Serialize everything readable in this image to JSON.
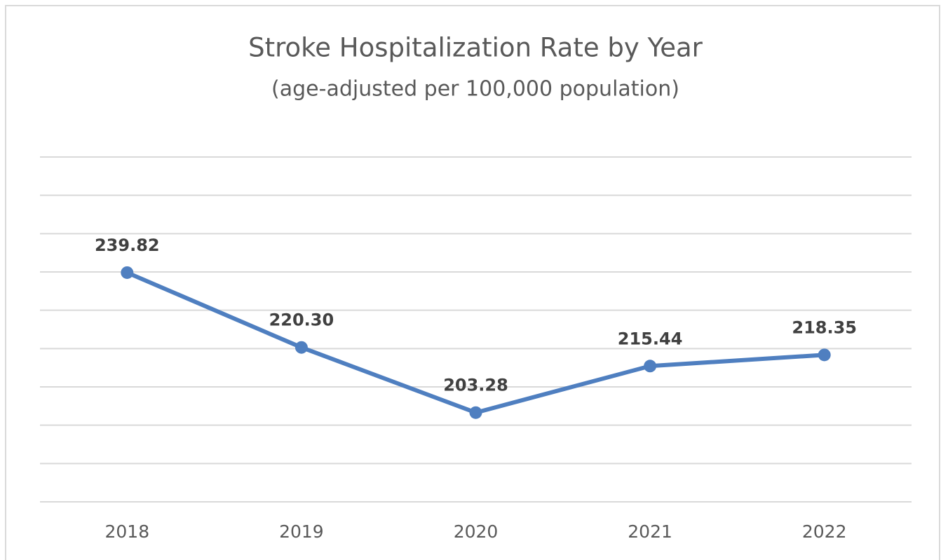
{
  "chart_data": {
    "type": "line",
    "title": "Stroke Hospitalization Rate by Year",
    "subtitle": "(age-adjusted per 100,000 population)",
    "categories": [
      "2018",
      "2019",
      "2020",
      "2021",
      "2022"
    ],
    "series": [
      {
        "name": "Stroke Hospitalization Rate",
        "color": "#4f7fc0",
        "values": [
          239.82,
          220.3,
          203.28,
          215.44,
          218.35
        ],
        "value_labels": [
          "239.82",
          "220.30",
          "203.28",
          "215.44",
          "218.35"
        ]
      }
    ],
    "ylim": [
      180,
      270
    ],
    "yticks": [
      180,
      190,
      200,
      210,
      220,
      230,
      240,
      250,
      260,
      270
    ],
    "grid": true
  }
}
